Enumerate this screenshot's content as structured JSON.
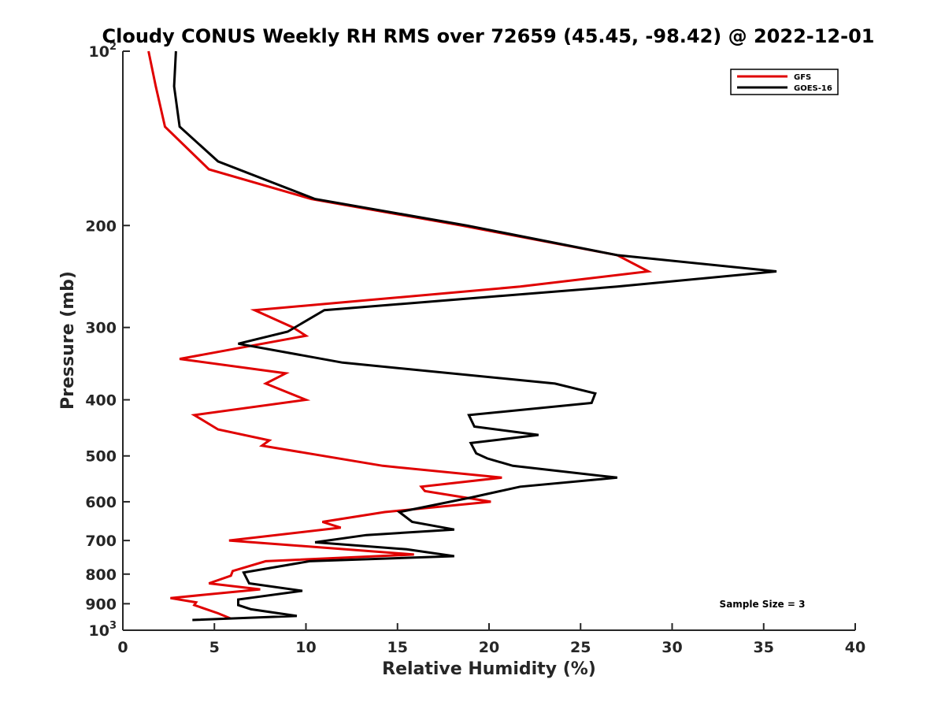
{
  "chart_data": {
    "type": "line",
    "title": "Cloudy CONUS Weekly RH RMS over 72659 (45.45, -98.42) @ 2022-12-01",
    "xlabel": "Relative Humidity (%)",
    "ylabel": "Pressure (mb)",
    "xlim": [
      0,
      40
    ],
    "ylim": [
      100,
      1000
    ],
    "y_scale": "log",
    "y_reversed": true,
    "grid": false,
    "x_ticks": [
      "0",
      "5",
      "10",
      "15",
      "20",
      "25",
      "30",
      "35",
      "40"
    ],
    "y_ticks": [
      {
        "base": "10",
        "exp": "2",
        "value": 100
      },
      {
        "base": "200",
        "exp": "",
        "value": 200
      },
      {
        "base": "300",
        "exp": "",
        "value": 300
      },
      {
        "base": "400",
        "exp": "",
        "value": 400
      },
      {
        "base": "500",
        "exp": "",
        "value": 500
      },
      {
        "base": "600",
        "exp": "",
        "value": 600
      },
      {
        "base": "700",
        "exp": "",
        "value": 700
      },
      {
        "base": "800",
        "exp": "",
        "value": 800
      },
      {
        "base": "900",
        "exp": "",
        "value": 900
      },
      {
        "base": "10",
        "exp": "3",
        "value": 1000
      }
    ],
    "legend_position": "top-right",
    "annotation": "Sample Size = 3",
    "series": [
      {
        "name": "GFS",
        "color": "#e00000",
        "points": [
          [
            1.4,
            100
          ],
          [
            1.8,
            115
          ],
          [
            2.3,
            135
          ],
          [
            4.7,
            160
          ],
          [
            10.3,
            180
          ],
          [
            18.5,
            200
          ],
          [
            27.0,
            225
          ],
          [
            28.7,
            240
          ],
          [
            21.7,
            255
          ],
          [
            7.2,
            280
          ],
          [
            9.3,
            300
          ],
          [
            10.0,
            310
          ],
          [
            3.1,
            340
          ],
          [
            8.9,
            360
          ],
          [
            7.8,
            375
          ],
          [
            10.0,
            400
          ],
          [
            3.9,
            425
          ],
          [
            5.2,
            450
          ],
          [
            8.0,
            470
          ],
          [
            7.6,
            480
          ],
          [
            14.2,
            520
          ],
          [
            20.7,
            545
          ],
          [
            16.3,
            565
          ],
          [
            16.5,
            575
          ],
          [
            20.1,
            600
          ],
          [
            14.3,
            625
          ],
          [
            10.9,
            650
          ],
          [
            11.9,
            665
          ],
          [
            5.8,
            700
          ],
          [
            15.9,
            740
          ],
          [
            7.8,
            760
          ],
          [
            6.0,
            790
          ],
          [
            5.9,
            805
          ],
          [
            4.7,
            830
          ],
          [
            7.5,
            850
          ],
          [
            2.6,
            880
          ],
          [
            4.0,
            895
          ],
          [
            3.9,
            905
          ],
          [
            5.2,
            935
          ],
          [
            5.9,
            955
          ]
        ]
      },
      {
        "name": "GOES-16",
        "color": "#000000",
        "points": [
          [
            2.9,
            100
          ],
          [
            2.8,
            115
          ],
          [
            3.1,
            135
          ],
          [
            5.2,
            155
          ],
          [
            10.5,
            180
          ],
          [
            18.8,
            200
          ],
          [
            27.0,
            225
          ],
          [
            35.7,
            240
          ],
          [
            27.0,
            255
          ],
          [
            11.0,
            280
          ],
          [
            9.0,
            305
          ],
          [
            6.3,
            320
          ],
          [
            12.0,
            345
          ],
          [
            23.6,
            375
          ],
          [
            25.8,
            390
          ],
          [
            25.6,
            405
          ],
          [
            18.9,
            425
          ],
          [
            19.2,
            445
          ],
          [
            22.7,
            460
          ],
          [
            19.0,
            475
          ],
          [
            19.3,
            495
          ],
          [
            19.9,
            505
          ],
          [
            21.3,
            520
          ],
          [
            27.0,
            545
          ],
          [
            21.7,
            565
          ],
          [
            19.0,
            590
          ],
          [
            15.1,
            625
          ],
          [
            15.8,
            650
          ],
          [
            18.1,
            670
          ],
          [
            13.3,
            685
          ],
          [
            10.5,
            705
          ],
          [
            15.5,
            725
          ],
          [
            18.1,
            745
          ],
          [
            10.2,
            760
          ],
          [
            6.6,
            795
          ],
          [
            6.9,
            830
          ],
          [
            9.8,
            855
          ],
          [
            6.3,
            885
          ],
          [
            6.3,
            905
          ],
          [
            7.0,
            920
          ],
          [
            9.5,
            945
          ],
          [
            3.8,
            960
          ]
        ]
      }
    ]
  }
}
